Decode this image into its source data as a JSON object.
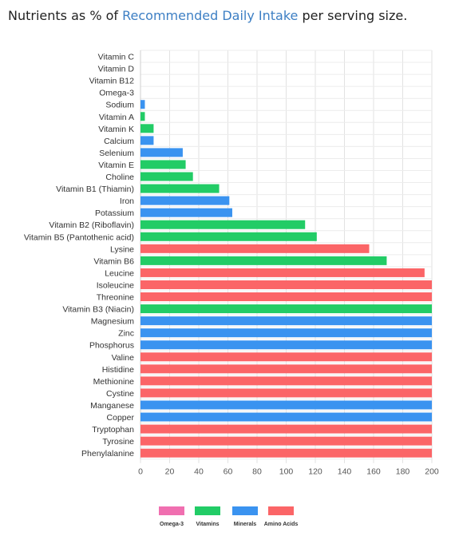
{
  "heading": {
    "prefix": "Nutrients as % of ",
    "link_text": "Recommended Daily Intake",
    "suffix": " per serving size."
  },
  "colors": {
    "Omega-3": "#f06fb0",
    "Vitamins": "#22cc66",
    "Minerals": "#3a93f0",
    "Amino Acids": "#fb6567"
  },
  "chart_data": {
    "type": "bar",
    "orientation": "horizontal",
    "xlim": [
      0,
      200
    ],
    "xticks": [
      0,
      20,
      40,
      60,
      80,
      100,
      120,
      140,
      160,
      180,
      200
    ],
    "grid": true,
    "legend_position": "bottom",
    "legend": [
      "Omega-3",
      "Vitamins",
      "Minerals",
      "Amino Acids"
    ],
    "bars": [
      {
        "label": "Vitamin C",
        "value": 0,
        "group": "Vitamins"
      },
      {
        "label": "Vitamin D",
        "value": 0,
        "group": "Vitamins"
      },
      {
        "label": "Vitamin B12",
        "value": 0,
        "group": "Vitamins"
      },
      {
        "label": "Omega-3",
        "value": 0,
        "group": "Omega-3"
      },
      {
        "label": "Sodium",
        "value": 3,
        "group": "Minerals"
      },
      {
        "label": "Vitamin A",
        "value": 3,
        "group": "Vitamins"
      },
      {
        "label": "Vitamin K",
        "value": 9,
        "group": "Vitamins"
      },
      {
        "label": "Calcium",
        "value": 9,
        "group": "Minerals"
      },
      {
        "label": "Selenium",
        "value": 29,
        "group": "Minerals"
      },
      {
        "label": "Vitamin E",
        "value": 31,
        "group": "Vitamins"
      },
      {
        "label": "Choline",
        "value": 36,
        "group": "Vitamins"
      },
      {
        "label": "Vitamin B1 (Thiamin)",
        "value": 54,
        "group": "Vitamins"
      },
      {
        "label": "Iron",
        "value": 61,
        "group": "Minerals"
      },
      {
        "label": "Potassium",
        "value": 63,
        "group": "Minerals"
      },
      {
        "label": "Vitamin B2 (Riboflavin)",
        "value": 113,
        "group": "Vitamins"
      },
      {
        "label": "Vitamin B5 (Pantothenic acid)",
        "value": 121,
        "group": "Vitamins"
      },
      {
        "label": "Lysine",
        "value": 157,
        "group": "Amino Acids"
      },
      {
        "label": "Vitamin B6",
        "value": 169,
        "group": "Vitamins"
      },
      {
        "label": "Leucine",
        "value": 195,
        "group": "Amino Acids"
      },
      {
        "label": "Isoleucine",
        "value": 200,
        "group": "Amino Acids"
      },
      {
        "label": "Threonine",
        "value": 200,
        "group": "Amino Acids"
      },
      {
        "label": "Vitamin B3 (Niacin)",
        "value": 200,
        "group": "Vitamins"
      },
      {
        "label": "Magnesium",
        "value": 200,
        "group": "Minerals"
      },
      {
        "label": "Zinc",
        "value": 200,
        "group": "Minerals"
      },
      {
        "label": "Phosphorus",
        "value": 200,
        "group": "Minerals"
      },
      {
        "label": "Valine",
        "value": 200,
        "group": "Amino Acids"
      },
      {
        "label": "Histidine",
        "value": 200,
        "group": "Amino Acids"
      },
      {
        "label": "Methionine",
        "value": 200,
        "group": "Amino Acids"
      },
      {
        "label": "Cystine",
        "value": 200,
        "group": "Amino Acids"
      },
      {
        "label": "Manganese",
        "value": 200,
        "group": "Minerals"
      },
      {
        "label": "Copper",
        "value": 200,
        "group": "Minerals"
      },
      {
        "label": "Tryptophan",
        "value": 200,
        "group": "Amino Acids"
      },
      {
        "label": "Tyrosine",
        "value": 200,
        "group": "Amino Acids"
      },
      {
        "label": "Phenylalanine",
        "value": 200,
        "group": "Amino Acids"
      }
    ]
  }
}
